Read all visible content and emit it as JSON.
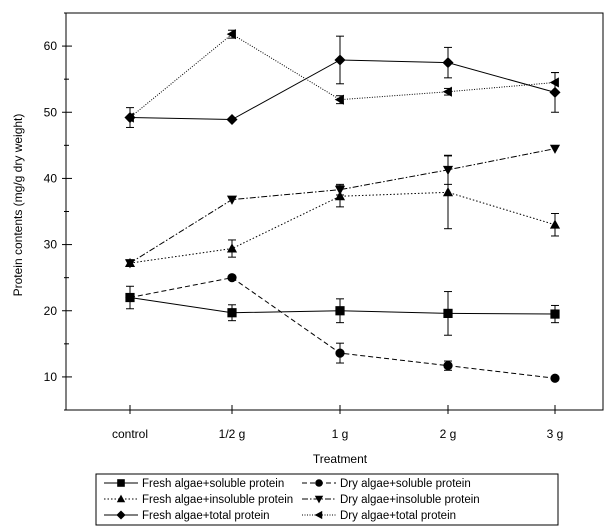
{
  "chart_data": {
    "type": "line",
    "xlabel": "Treatment",
    "ylabel": "Protein contents (mg/g dry weight)",
    "categories": [
      "control",
      "1/2 g",
      "1 g",
      "2 g",
      "3 g"
    ],
    "ylim": [
      5,
      65
    ],
    "yticks": [
      10,
      20,
      30,
      40,
      50,
      60
    ],
    "grid": false,
    "legend_position": "bottom",
    "series": [
      {
        "name": "Fresh algae+soluble protein",
        "marker": "square",
        "dash": "solid",
        "values": [
          22.0,
          19.7,
          20.0,
          19.6,
          19.5
        ],
        "errors": [
          1.7,
          1.2,
          1.8,
          3.3,
          1.3
        ]
      },
      {
        "name": "Dry algae+soluble protein",
        "marker": "circle",
        "dash": "dashed",
        "values": [
          22.0,
          25.0,
          13.6,
          11.7,
          9.8
        ],
        "errors": [
          0.0,
          0.0,
          1.5,
          0.7,
          0.0
        ]
      },
      {
        "name": "Fresh algae+insoluble protein",
        "marker": "triangle-up",
        "dash": "dotted",
        "values": [
          27.2,
          29.4,
          37.3,
          37.9,
          33.0
        ],
        "errors": [
          0.5,
          1.3,
          1.6,
          5.5,
          1.7
        ]
      },
      {
        "name": "Dry algae+insoluble protein",
        "marker": "triangle-down",
        "dash": "dashdot",
        "values": [
          27.2,
          36.8,
          38.3,
          41.3,
          44.5
        ],
        "errors": [
          0.0,
          0.0,
          0.8,
          2.2,
          0.0
        ]
      },
      {
        "name": "Fresh algae+total protein",
        "marker": "diamond",
        "dash": "solid",
        "values": [
          49.2,
          48.9,
          57.9,
          57.5,
          53.0
        ],
        "errors": [
          1.5,
          0.0,
          3.6,
          2.3,
          3.0
        ]
      },
      {
        "name": "Dry algae+total protein",
        "marker": "triangle-left",
        "dash": "shortdot",
        "values": [
          49.2,
          61.8,
          51.9,
          53.1,
          54.5
        ],
        "errors": [
          0.0,
          0.6,
          0.6,
          0.5,
          1.5
        ]
      }
    ]
  }
}
